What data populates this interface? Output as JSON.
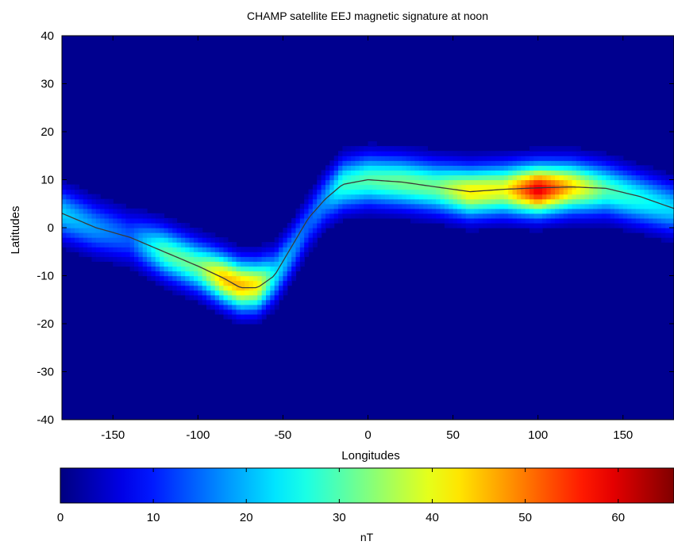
{
  "chart_data": {
    "type": "heatmap",
    "title": "CHAMP satellite EEJ magnetic signature at noon",
    "xlabel": "Longitudes",
    "ylabel": "Latitudes",
    "xlim": [
      -180,
      180
    ],
    "ylim": [
      -40,
      40
    ],
    "xticks": [
      -150,
      -100,
      -50,
      0,
      50,
      100,
      150
    ],
    "yticks": [
      40,
      30,
      20,
      10,
      0,
      -10,
      -20,
      -30,
      -40
    ],
    "grid": false,
    "colormap": "jet",
    "background_color": "#00008f",
    "colorbar": {
      "label": "nT",
      "range": [
        0,
        66
      ],
      "ticks": [
        0,
        10,
        20,
        30,
        40,
        50,
        60
      ],
      "orientation": "horizontal",
      "placement": "bottom"
    },
    "band_profile": {
      "longitudes": [
        -180,
        -160,
        -140,
        -120,
        -100,
        -85,
        -75,
        -65,
        -55,
        -45,
        -35,
        -25,
        -15,
        0,
        20,
        40,
        60,
        80,
        100,
        120,
        140,
        160,
        180
      ],
      "center_latitudes": [
        3,
        0,
        -2,
        -5,
        -8,
        -10.5,
        -12,
        -12,
        -10,
        -5,
        1,
        6,
        9,
        10,
        9.5,
        8.5,
        7.5,
        8,
        8,
        8.5,
        8,
        6,
        4
      ],
      "intensity_nT": [
        22,
        18,
        14,
        30,
        32,
        45,
        46,
        42,
        24,
        18,
        14,
        18,
        28,
        30,
        32,
        32,
        42,
        40,
        60,
        44,
        30,
        26,
        22
      ],
      "half_width_deg": 5
    },
    "model_line": {
      "longitudes": [
        -180,
        -160,
        -140,
        -120,
        -100,
        -85,
        -75,
        -65,
        -55,
        -45,
        -35,
        -25,
        -15,
        0,
        20,
        40,
        60,
        80,
        100,
        120,
        140,
        160,
        180
      ],
      "latitudes": [
        3,
        0,
        -2,
        -5,
        -8,
        -10.5,
        -12.5,
        -12.5,
        -10,
        -4,
        2,
        6,
        9,
        10,
        9.5,
        8.5,
        7.5,
        8,
        8.3,
        8.5,
        8.2,
        6.5,
        4
      ],
      "color": "#3a3a3a"
    }
  }
}
